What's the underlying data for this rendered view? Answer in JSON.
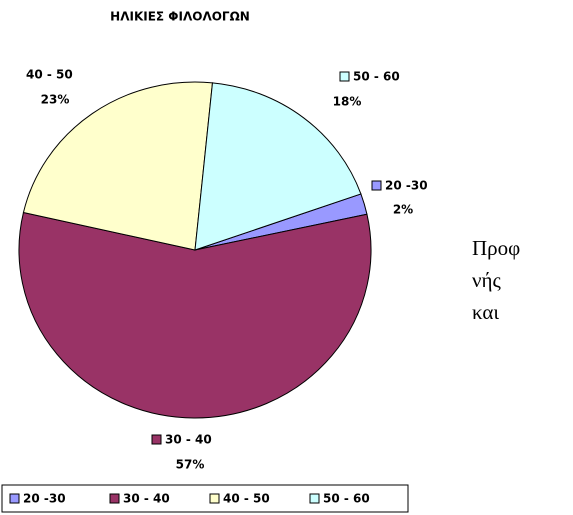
{
  "chart_data": {
    "type": "pie",
    "title": "ΗΛΙΚΙΕΣ ΦΙΛΟΛΟΓΩΝ",
    "categories": [
      "20 -30",
      "30 - 40",
      "40 - 50",
      "50 - 60"
    ],
    "values": [
      2,
      57,
      23,
      18
    ],
    "value_labels": [
      "2%",
      "57%",
      "23%",
      "18%"
    ],
    "colors": [
      "#9999ff",
      "#993366",
      "#ffffcc",
      "#ccffff"
    ],
    "legend": "bottom"
  },
  "side_text": [
    "Προφ",
    "νής",
    "και"
  ]
}
